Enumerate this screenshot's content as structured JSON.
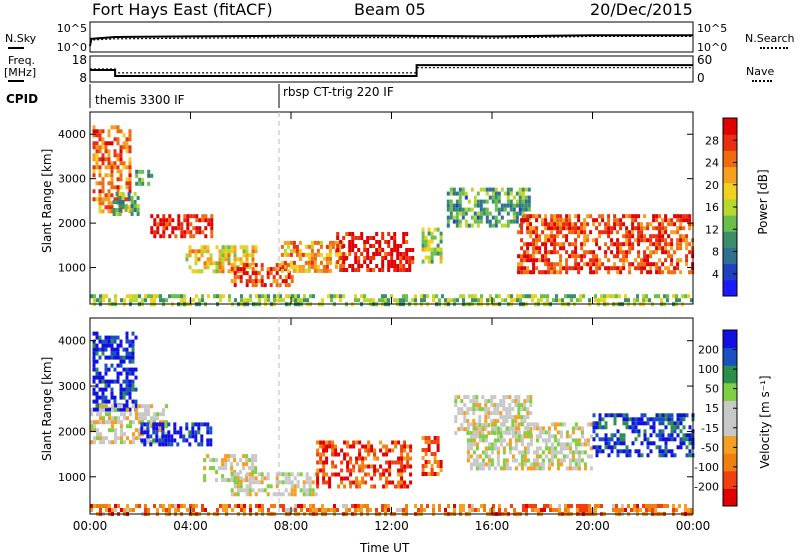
{
  "header": {
    "station": "Fort Hays East (fitACF)",
    "beam": "Beam 05",
    "date": "20/Dec/2015"
  },
  "side_labels": {
    "nsky": "N.Sky",
    "freq_line1": "Freq.",
    "freq_line2": "[MHz]",
    "cpid": "CPID",
    "nsearch": "N.Search",
    "nave": "Nave"
  },
  "cpid": {
    "segment1": "themis 3300 IF",
    "segment2": "rbsp CT-trig 220 IF"
  },
  "colors": {
    "power_scale": [
      "#1a1aff",
      "#2040c0",
      "#2f6f8f",
      "#3a8f6a",
      "#6abf4a",
      "#b8d830",
      "#f0d020",
      "#f5a020",
      "#f06a10",
      "#e83010",
      "#e00000"
    ],
    "velocity_scale": [
      "#e00000",
      "#f04010",
      "#f07f10",
      "#f5a020",
      "#c8c8c8",
      "#c8c8c8",
      "#7ed040",
      "#2a8f4a",
      "#1a50c0",
      "#1010e0"
    ]
  },
  "chart_data": [
    {
      "type": "line",
      "title": "",
      "left_axis": {
        "ticks": [
          "10^5",
          "10^0"
        ]
      },
      "right_axis": {
        "ticks": [
          "10^5",
          "10^0"
        ]
      },
      "series": [
        {
          "name": "N.Sky",
          "x": [
            0,
            0.05,
            1,
            4,
            8,
            12,
            16,
            20,
            24
          ],
          "y": [
            1.0,
            2.2,
            2.5,
            2.6,
            2.7,
            2.7,
            2.6,
            2.8,
            2.8
          ]
        },
        {
          "name": "N.Search",
          "x": [
            0,
            0.05,
            1,
            4,
            8,
            12,
            16,
            20,
            24
          ],
          "y": [
            1.0,
            2.0,
            2.2,
            2.3,
            2.4,
            2.4,
            2.3,
            2.6,
            2.6
          ]
        }
      ]
    },
    {
      "type": "line",
      "left_axis": {
        "ticks": [
          "18",
          "8"
        ]
      },
      "right_axis": {
        "ticks": [
          "60",
          "0"
        ]
      },
      "series": [
        {
          "name": "Freq.",
          "x": [
            0,
            1,
            1,
            13,
            13,
            24
          ],
          "y": [
            12.6,
            12.6,
            10.3,
            10.3,
            14.5,
            14.5
          ]
        },
        {
          "name": "Nave",
          "x": [
            0,
            1,
            1,
            13,
            13,
            24
          ],
          "y": [
            30,
            30,
            21,
            21,
            33,
            33
          ]
        }
      ]
    },
    {
      "type": "heatmap",
      "title": "",
      "ylabel": "Slant Range [km]",
      "yticks": [
        "4000",
        "3000",
        "2000",
        "1000"
      ],
      "ylim": [
        180,
        4500
      ],
      "xlim": [
        0,
        24
      ],
      "colorbar": {
        "label": "Power [dB]",
        "ticks": [
          "28",
          "24",
          "20",
          "16",
          "12",
          "8",
          "4"
        ]
      },
      "features": [
        {
          "x0": 0.1,
          "x1": 1.6,
          "r0": 2300,
          "r1": 4200,
          "level": 0.75
        },
        {
          "x0": 0.9,
          "x1": 1.9,
          "r0": 2200,
          "r1": 2700,
          "level": 0.4
        },
        {
          "x0": 1.8,
          "x1": 2.4,
          "r0": 2900,
          "r1": 3200,
          "level": 0.35
        },
        {
          "x0": 2.4,
          "x1": 4.8,
          "r0": 1700,
          "r1": 2200,
          "level": 0.9
        },
        {
          "x0": 3.8,
          "x1": 6.6,
          "r0": 900,
          "r1": 1500,
          "level": 0.6
        },
        {
          "x0": 5.6,
          "x1": 8.0,
          "r0": 600,
          "r1": 1100,
          "level": 0.85
        },
        {
          "x0": 7.6,
          "x1": 10.2,
          "r0": 900,
          "r1": 1600,
          "level": 0.7
        },
        {
          "x0": 9.8,
          "x1": 12.8,
          "r0": 900,
          "r1": 1800,
          "level": 0.95
        },
        {
          "x0": 13.2,
          "x1": 14.0,
          "r0": 1100,
          "r1": 1900,
          "level": 0.5
        },
        {
          "x0": 14.2,
          "x1": 17.5,
          "r0": 1900,
          "r1": 2800,
          "level": 0.35
        },
        {
          "x0": 17.0,
          "x1": 24.0,
          "r0": 900,
          "r1": 2200,
          "level": 0.85
        },
        {
          "x0": 0.0,
          "x1": 24.0,
          "r0": 200,
          "r1": 400,
          "level": 0.45
        }
      ]
    },
    {
      "type": "heatmap",
      "ylabel": "Slant Range [km]",
      "yticks": [
        "4000",
        "3000",
        "2000",
        "1000"
      ],
      "ylim": [
        180,
        4500
      ],
      "xlim": [
        0,
        24
      ],
      "xlabel": "Time UT",
      "xticks": [
        "00:00",
        "04:00",
        "08:00",
        "12:00",
        "16:00",
        "20:00",
        "00:00"
      ],
      "colorbar": {
        "label": "Velocity [m s⁻¹]",
        "ticks": [
          "200",
          "100",
          "50",
          "15",
          "-15",
          "-50",
          "-100",
          "-200"
        ]
      },
      "features": [
        {
          "x0": 0.1,
          "x1": 1.8,
          "r0": 2500,
          "r1": 4200,
          "level": 0.95
        },
        {
          "x0": 0.0,
          "x1": 3.0,
          "r0": 1800,
          "r1": 2600,
          "level": 0.5
        },
        {
          "x0": 2.0,
          "x1": 4.8,
          "r0": 1700,
          "r1": 2200,
          "level": 0.95
        },
        {
          "x0": 4.5,
          "x1": 6.6,
          "r0": 900,
          "r1": 1500,
          "level": 0.5
        },
        {
          "x0": 5.6,
          "x1": 9.0,
          "r0": 600,
          "r1": 1100,
          "level": 0.5
        },
        {
          "x0": 9.0,
          "x1": 12.8,
          "r0": 800,
          "r1": 1800,
          "level": 0.15
        },
        {
          "x0": 13.2,
          "x1": 14.0,
          "r0": 1100,
          "r1": 1900,
          "level": 0.15
        },
        {
          "x0": 14.5,
          "x1": 17.5,
          "r0": 2000,
          "r1": 2800,
          "level": 0.5
        },
        {
          "x0": 15.0,
          "x1": 20.0,
          "r0": 1200,
          "r1": 2200,
          "level": 0.5
        },
        {
          "x0": 20.0,
          "x1": 24.0,
          "r0": 1500,
          "r1": 2400,
          "level": 0.9
        },
        {
          "x0": 0.0,
          "x1": 24.0,
          "r0": 200,
          "r1": 400,
          "level": 0.25
        }
      ]
    }
  ]
}
